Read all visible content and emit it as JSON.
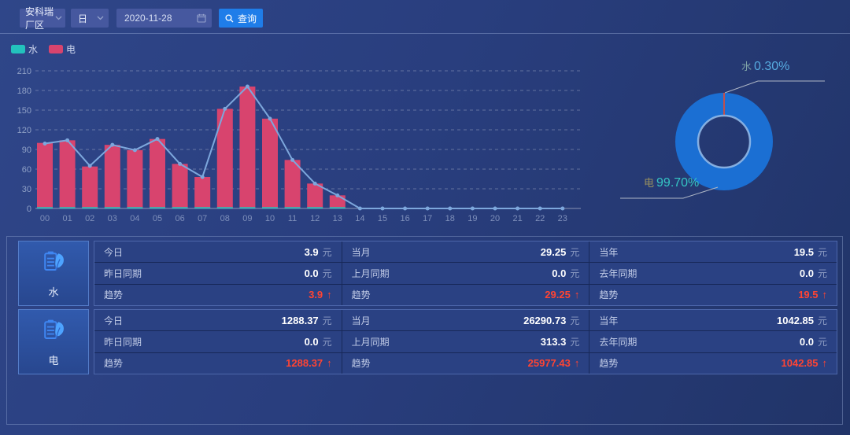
{
  "toolbar": {
    "site_select": "安科瑞厂区",
    "period_select": "日",
    "date_value": "2020-11-28",
    "query_label": "查询"
  },
  "legend": {
    "items": [
      {
        "label": "水",
        "color": "#23c2bd"
      },
      {
        "label": "电",
        "color": "#d8446e"
      }
    ]
  },
  "chart_data": [
    {
      "type": "bar",
      "categories": [
        "00",
        "01",
        "02",
        "03",
        "04",
        "05",
        "06",
        "07",
        "08",
        "09",
        "10",
        "11",
        "12",
        "13",
        "14",
        "15",
        "16",
        "17",
        "18",
        "19",
        "20",
        "21",
        "22",
        "23"
      ],
      "series": [
        {
          "name": "水",
          "type": "bar",
          "color": "#23c2bd",
          "values": [
            2,
            2,
            2,
            2,
            2,
            2,
            2,
            2,
            2,
            2,
            2,
            2,
            2,
            2,
            0,
            0,
            0,
            0,
            0,
            0,
            0,
            0,
            0,
            0
          ]
        },
        {
          "name": "电",
          "type": "bar",
          "color": "#d8446e",
          "values": [
            100,
            104,
            64,
            97,
            89,
            106,
            68,
            48,
            152,
            186,
            137,
            74,
            38,
            20,
            0,
            0,
            0,
            0,
            0,
            0,
            0,
            0,
            0,
            0
          ]
        },
        {
          "name": "电-趋势线",
          "type": "line",
          "color": "#7da7dc",
          "values": [
            99,
            104,
            65,
            97,
            89,
            106,
            68,
            48,
            152,
            186,
            137,
            74,
            38,
            20,
            0,
            0,
            0,
            0,
            0,
            0,
            0,
            0,
            0,
            0
          ]
        }
      ],
      "ylim": [
        0,
        210
      ],
      "yticks": [
        0,
        30,
        60,
        90,
        120,
        150,
        180,
        210
      ],
      "grid": "horizontal-dashed",
      "legend_position": "top-left"
    },
    {
      "type": "pie",
      "donut": true,
      "slices": [
        {
          "label": "水",
          "value": 0.3,
          "pct_label": "0.30%",
          "color": "#c0504d"
        },
        {
          "label": "电",
          "value": 99.7,
          "pct_label": "99.70%",
          "color": "#1b6fd3"
        }
      ]
    }
  ],
  "tables": [
    {
      "label": "水",
      "cols": [
        {
          "rows": [
            {
              "label": "今日",
              "value": "3.9",
              "unit": "元"
            },
            {
              "label": "昨日同期",
              "value": "0.0",
              "unit": "元"
            },
            {
              "label": "趋势",
              "value": "3.9",
              "trend": true
            }
          ]
        },
        {
          "rows": [
            {
              "label": "当月",
              "value": "29.25",
              "unit": "元"
            },
            {
              "label": "上月同期",
              "value": "0.0",
              "unit": "元"
            },
            {
              "label": "趋势",
              "value": "29.25",
              "trend": true
            }
          ]
        },
        {
          "rows": [
            {
              "label": "当年",
              "value": "19.5",
              "unit": "元"
            },
            {
              "label": "去年同期",
              "value": "0.0",
              "unit": "元"
            },
            {
              "label": "趋势",
              "value": "19.5",
              "trend": true
            }
          ]
        }
      ]
    },
    {
      "label": "电",
      "cols": [
        {
          "rows": [
            {
              "label": "今日",
              "value": "1288.37",
              "unit": "元"
            },
            {
              "label": "昨日同期",
              "value": "0.0",
              "unit": "元"
            },
            {
              "label": "趋势",
              "value": "1288.37",
              "trend": true
            }
          ]
        },
        {
          "rows": [
            {
              "label": "当月",
              "value": "26290.73",
              "unit": "元"
            },
            {
              "label": "上月同期",
              "value": "313.3",
              "unit": "元"
            },
            {
              "label": "趋势",
              "value": "25977.43",
              "trend": true
            }
          ]
        },
        {
          "rows": [
            {
              "label": "当年",
              "value": "1042.85",
              "unit": "元"
            },
            {
              "label": "去年同期",
              "value": "0.0",
              "unit": "元"
            },
            {
              "label": "趋势",
              "value": "1042.85",
              "trend": true
            }
          ]
        }
      ]
    }
  ],
  "misc": {
    "up_arrow": "↑"
  }
}
